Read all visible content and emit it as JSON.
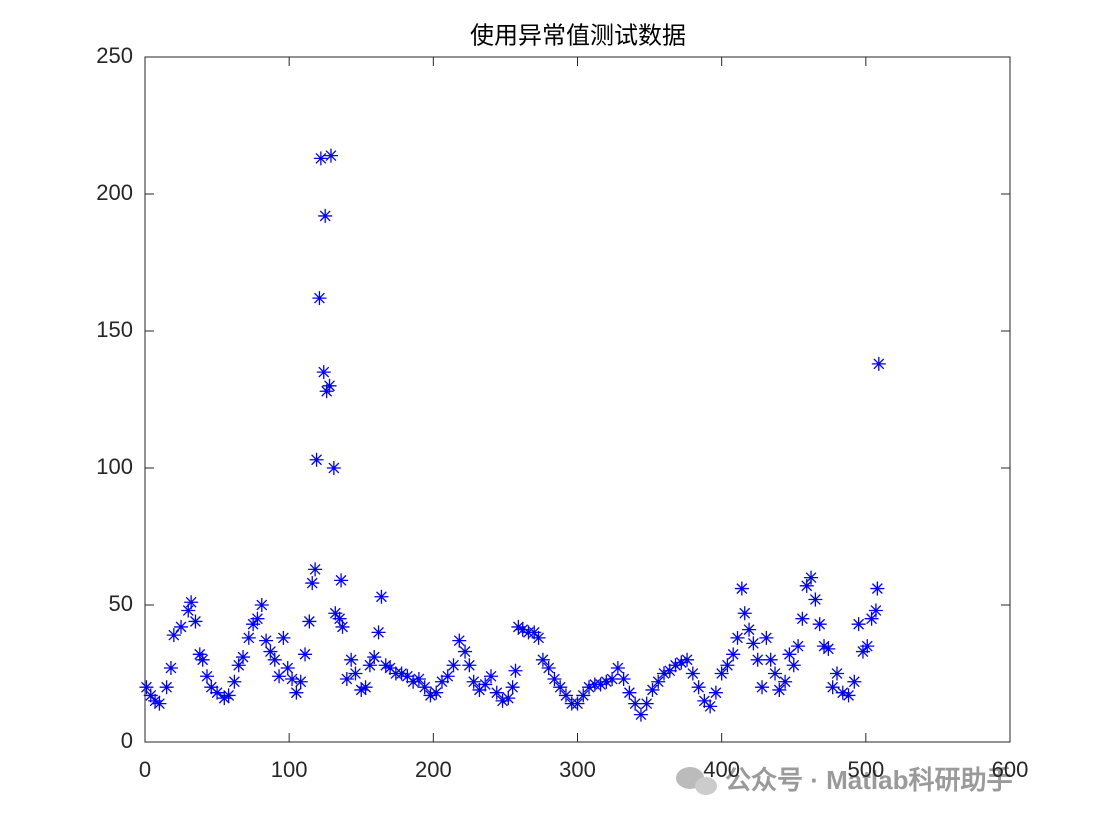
{
  "chart_data": {
    "type": "scatter",
    "title": "使用异常值测试数据",
    "watermark": "公众号 · Matlab科研助手",
    "series": [
      {
        "color": "#0000ff",
        "marker": "asterisk",
        "x": [
          1,
          4,
          7,
          10,
          15,
          18,
          20,
          25,
          30,
          32,
          35,
          38,
          40,
          43,
          46,
          50,
          55,
          58,
          62,
          65,
          68,
          72,
          75,
          78,
          81,
          84,
          87,
          90,
          93,
          96,
          99,
          102,
          105,
          108,
          111,
          114,
          116,
          118,
          119,
          121,
          122,
          124,
          125,
          126,
          128,
          129,
          131,
          132,
          135,
          136,
          137,
          140,
          143,
          146,
          150,
          153,
          156,
          159,
          162,
          164,
          167,
          170,
          174,
          178,
          182,
          186,
          190,
          194,
          198,
          202,
          206,
          210,
          214,
          218,
          222,
          225,
          228,
          232,
          236,
          240,
          244,
          248,
          252,
          255,
          257,
          259,
          262,
          266,
          270,
          273,
          276,
          280,
          284,
          288,
          292,
          296,
          300,
          304,
          308,
          312,
          316,
          320,
          324,
          328,
          332,
          336,
          340,
          344,
          348,
          352,
          356,
          360,
          364,
          368,
          372,
          376,
          380,
          384,
          388,
          392,
          396,
          400,
          404,
          408,
          411,
          414,
          416,
          419,
          422,
          425,
          428,
          431,
          434,
          437,
          440,
          444,
          447,
          450,
          453,
          456,
          459,
          462,
          465,
          468,
          471,
          474,
          477,
          480,
          484,
          488,
          492,
          495,
          498,
          501,
          504,
          507,
          508,
          509
        ],
        "values": [
          20,
          17,
          15,
          14,
          20,
          27,
          39,
          42,
          48,
          51,
          44,
          32,
          30,
          24,
          20,
          18,
          16,
          17,
          22,
          28,
          31,
          38,
          43,
          45,
          50,
          37,
          33,
          30,
          24,
          38,
          27,
          23,
          18,
          22,
          32,
          44,
          58,
          63,
          103,
          162,
          213,
          135,
          192,
          128,
          130,
          214,
          100,
          47,
          45,
          59,
          42,
          23,
          30,
          25,
          19,
          20,
          28,
          31,
          40,
          53,
          28,
          27,
          25,
          25,
          24,
          22,
          23,
          20,
          17,
          18,
          22,
          24,
          28,
          37,
          33,
          28,
          22,
          19,
          21,
          24,
          18,
          15,
          16,
          20,
          26,
          42,
          41,
          40,
          40,
          38,
          30,
          27,
          23,
          20,
          17,
          14,
          14,
          17,
          20,
          21,
          21,
          22,
          23,
          27,
          23,
          18,
          14,
          10,
          14,
          19,
          22,
          25,
          26,
          28,
          29,
          30,
          25,
          20,
          15,
          13,
          18,
          25,
          28,
          32,
          38,
          56,
          47,
          41,
          36,
          30,
          20,
          38,
          30,
          25,
          19,
          22,
          32,
          28,
          35,
          45,
          57,
          60,
          52,
          43,
          35,
          34,
          20,
          25,
          18,
          17,
          22,
          43,
          33,
          35,
          45,
          48,
          56,
          138
        ]
      }
    ],
    "xlim": [
      0,
      600
    ],
    "xticks": [
      0,
      100,
      200,
      300,
      400,
      500,
      600
    ],
    "ylim": [
      0,
      250
    ],
    "yticks": [
      0,
      50,
      100,
      150,
      200,
      250
    ]
  }
}
